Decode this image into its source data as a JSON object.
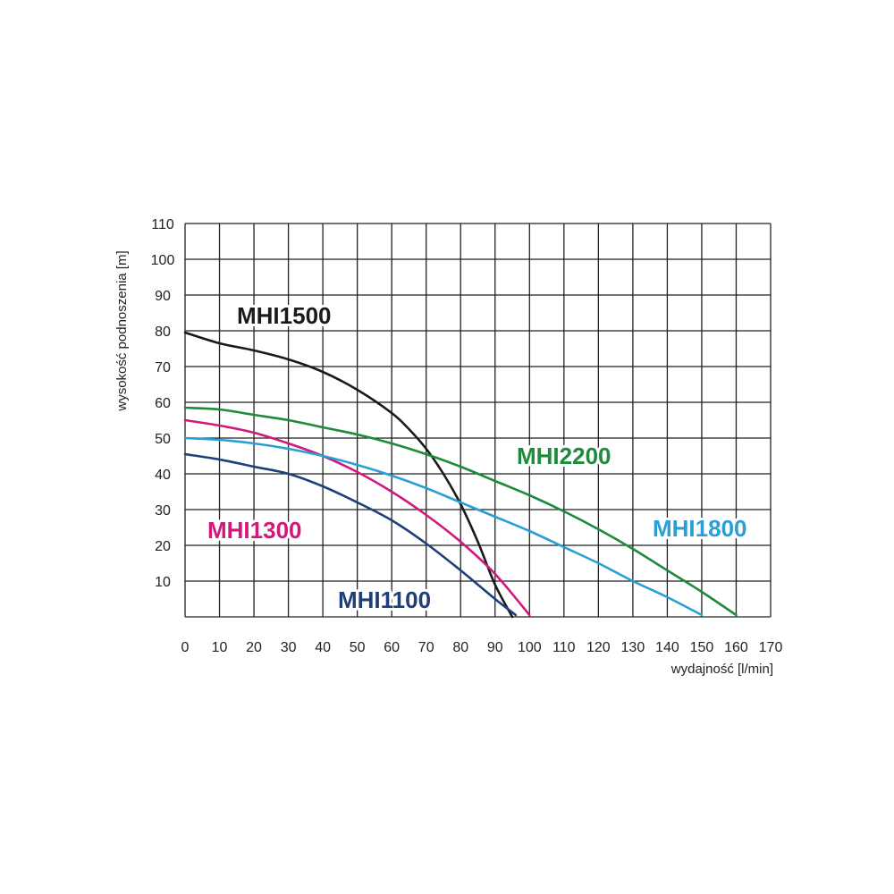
{
  "chart_data": {
    "type": "line",
    "xlabel": "wydajność [l/min]",
    "ylabel": "wysokość podnoszenia [m]",
    "xlim": [
      0,
      170
    ],
    "ylim": [
      0,
      110
    ],
    "x_ticks": [
      0,
      10,
      20,
      30,
      40,
      50,
      60,
      70,
      80,
      90,
      100,
      110,
      120,
      130,
      140,
      150,
      160,
      170
    ],
    "y_ticks": [
      10,
      20,
      30,
      40,
      50,
      60,
      70,
      80,
      90,
      100,
      110
    ],
    "grid": true,
    "series": [
      {
        "name": "MHI1500",
        "color": "#1a1a1a",
        "x": [
          0,
          10,
          20,
          30,
          40,
          50,
          60,
          65,
          70,
          75,
          80,
          85,
          90,
          95
        ],
        "y": [
          79.5,
          76.5,
          74.5,
          72,
          68.5,
          63.5,
          57,
          52.5,
          47,
          40,
          31.5,
          21,
          9,
          0
        ]
      },
      {
        "name": "MHI2200",
        "color": "#1d8a3c",
        "x": [
          0,
          10,
          20,
          30,
          40,
          50,
          60,
          70,
          80,
          90,
          100,
          110,
          120,
          130,
          140,
          150,
          160
        ],
        "y": [
          58.5,
          58,
          56.5,
          55,
          53,
          51,
          48.5,
          45.5,
          42,
          38,
          34,
          29.5,
          24.5,
          19,
          13,
          7,
          0.5
        ]
      },
      {
        "name": "MHI1300",
        "color": "#d0197a",
        "x": [
          0,
          10,
          20,
          30,
          40,
          50,
          60,
          70,
          80,
          90,
          100
        ],
        "y": [
          55,
          53.5,
          51.5,
          48.5,
          45,
          40.5,
          35,
          28.5,
          21,
          12,
          0.5
        ]
      },
      {
        "name": "MHI1800",
        "color": "#2a9fd6",
        "x": [
          0,
          10,
          20,
          30,
          40,
          50,
          60,
          70,
          80,
          90,
          100,
          110,
          120,
          130,
          140,
          150
        ],
        "y": [
          50,
          49.5,
          48.5,
          47,
          45,
          42.5,
          39.5,
          36,
          32,
          28,
          24,
          19.5,
          15,
          10,
          5.5,
          0.5
        ]
      },
      {
        "name": "MHI1100",
        "color": "#1f3f7a",
        "x": [
          0,
          10,
          20,
          30,
          40,
          50,
          60,
          70,
          80,
          90,
          96
        ],
        "y": [
          45.5,
          44,
          42,
          40,
          36.5,
          32,
          27,
          20.5,
          13,
          5,
          0.5
        ]
      }
    ]
  }
}
